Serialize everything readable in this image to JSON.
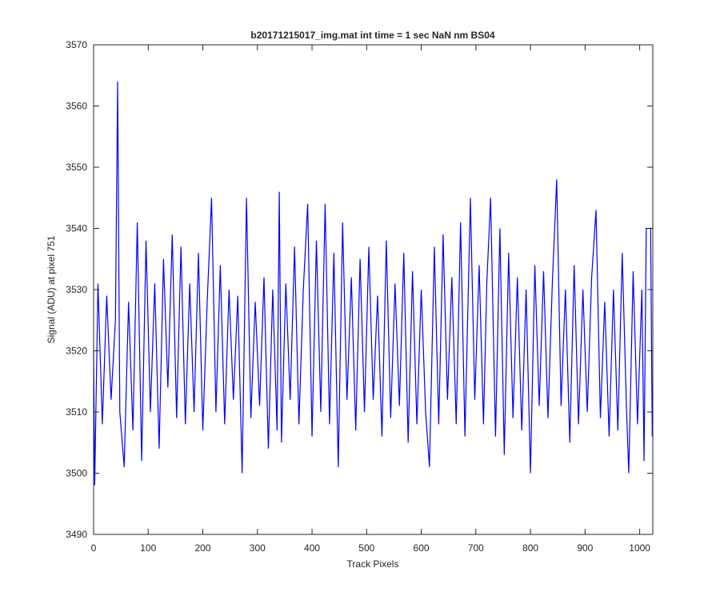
{
  "chart_data": {
    "type": "line",
    "title": "b20171215017_img.mat int time = 1 sec  NaN nm BS04",
    "xlabel": "Track Pixels",
    "ylabel": "Signal (ADU) at pixel 751",
    "xlim": [
      0,
      1024
    ],
    "ylim": [
      3490,
      3570
    ],
    "xticks": [
      0,
      100,
      200,
      300,
      400,
      500,
      600,
      700,
      800,
      900,
      1000
    ],
    "yticks": [
      3490,
      3500,
      3510,
      3520,
      3530,
      3540,
      3550,
      3560,
      3570
    ],
    "grid": false,
    "series": [
      {
        "color": "#0000ff",
        "x": [
          0,
          2,
          8,
          16,
          24,
          32,
          40,
          44,
          48,
          56,
          64,
          72,
          80,
          88,
          96,
          104,
          112,
          120,
          128,
          136,
          144,
          152,
          160,
          168,
          176,
          184,
          192,
          200,
          208,
          216,
          224,
          232,
          240,
          248,
          256,
          264,
          272,
          280,
          288,
          296,
          304,
          312,
          320,
          328,
          336,
          340,
          344,
          352,
          360,
          368,
          376,
          384,
          392,
          400,
          408,
          416,
          424,
          432,
          440,
          448,
          456,
          464,
          472,
          480,
          488,
          496,
          504,
          512,
          520,
          528,
          536,
          544,
          552,
          560,
          568,
          576,
          584,
          592,
          600,
          608,
          615,
          624,
          632,
          640,
          648,
          656,
          664,
          672,
          680,
          690,
          698,
          706,
          714,
          720,
          727,
          736,
          744,
          752,
          760,
          768,
          776,
          784,
          792,
          800,
          808,
          816,
          824,
          832,
          840,
          848,
          856,
          864,
          872,
          880,
          888,
          896,
          904,
          912,
          920,
          928,
          936,
          944,
          952,
          960,
          968,
          976,
          980,
          988,
          996,
          1004,
          1008,
          1012,
          1020,
          1023
        ],
        "values": [
          3520,
          3498,
          3531,
          3508,
          3529,
          3512,
          3525,
          3564,
          3510,
          3501,
          3528,
          3507,
          3541,
          3502,
          3538,
          3510,
          3531,
          3504,
          3535,
          3514,
          3539,
          3509,
          3537,
          3508,
          3531,
          3510,
          3536,
          3507,
          3528,
          3545,
          3510,
          3534,
          3508,
          3530,
          3512,
          3529,
          3500,
          3545,
          3509,
          3528,
          3511,
          3532,
          3504,
          3530,
          3507,
          3546,
          3505,
          3531,
          3512,
          3537,
          3508,
          3530,
          3544,
          3506,
          3538,
          3510,
          3544,
          3508,
          3536,
          3501,
          3541,
          3512,
          3532,
          3507,
          3535,
          3510,
          3537,
          3512,
          3529,
          3506,
          3538,
          3509,
          3531,
          3511,
          3536,
          3505,
          3533,
          3508,
          3530,
          3510,
          3501,
          3537,
          3508,
          3539,
          3512,
          3532,
          3508,
          3541,
          3506,
          3545,
          3512,
          3534,
          3508,
          3531,
          3545,
          3506,
          3540,
          3503,
          3536,
          3509,
          3532,
          3507,
          3530,
          3500,
          3534,
          3511,
          3533,
          3509,
          3531,
          3548,
          3511,
          3530,
          3505,
          3534,
          3508,
          3530,
          3510,
          3532,
          3543,
          3509,
          3528,
          3506,
          3530,
          3507,
          3536,
          3510,
          3500,
          3533,
          3508,
          3530,
          3502,
          3540,
          3540,
          3506
        ]
      }
    ]
  }
}
